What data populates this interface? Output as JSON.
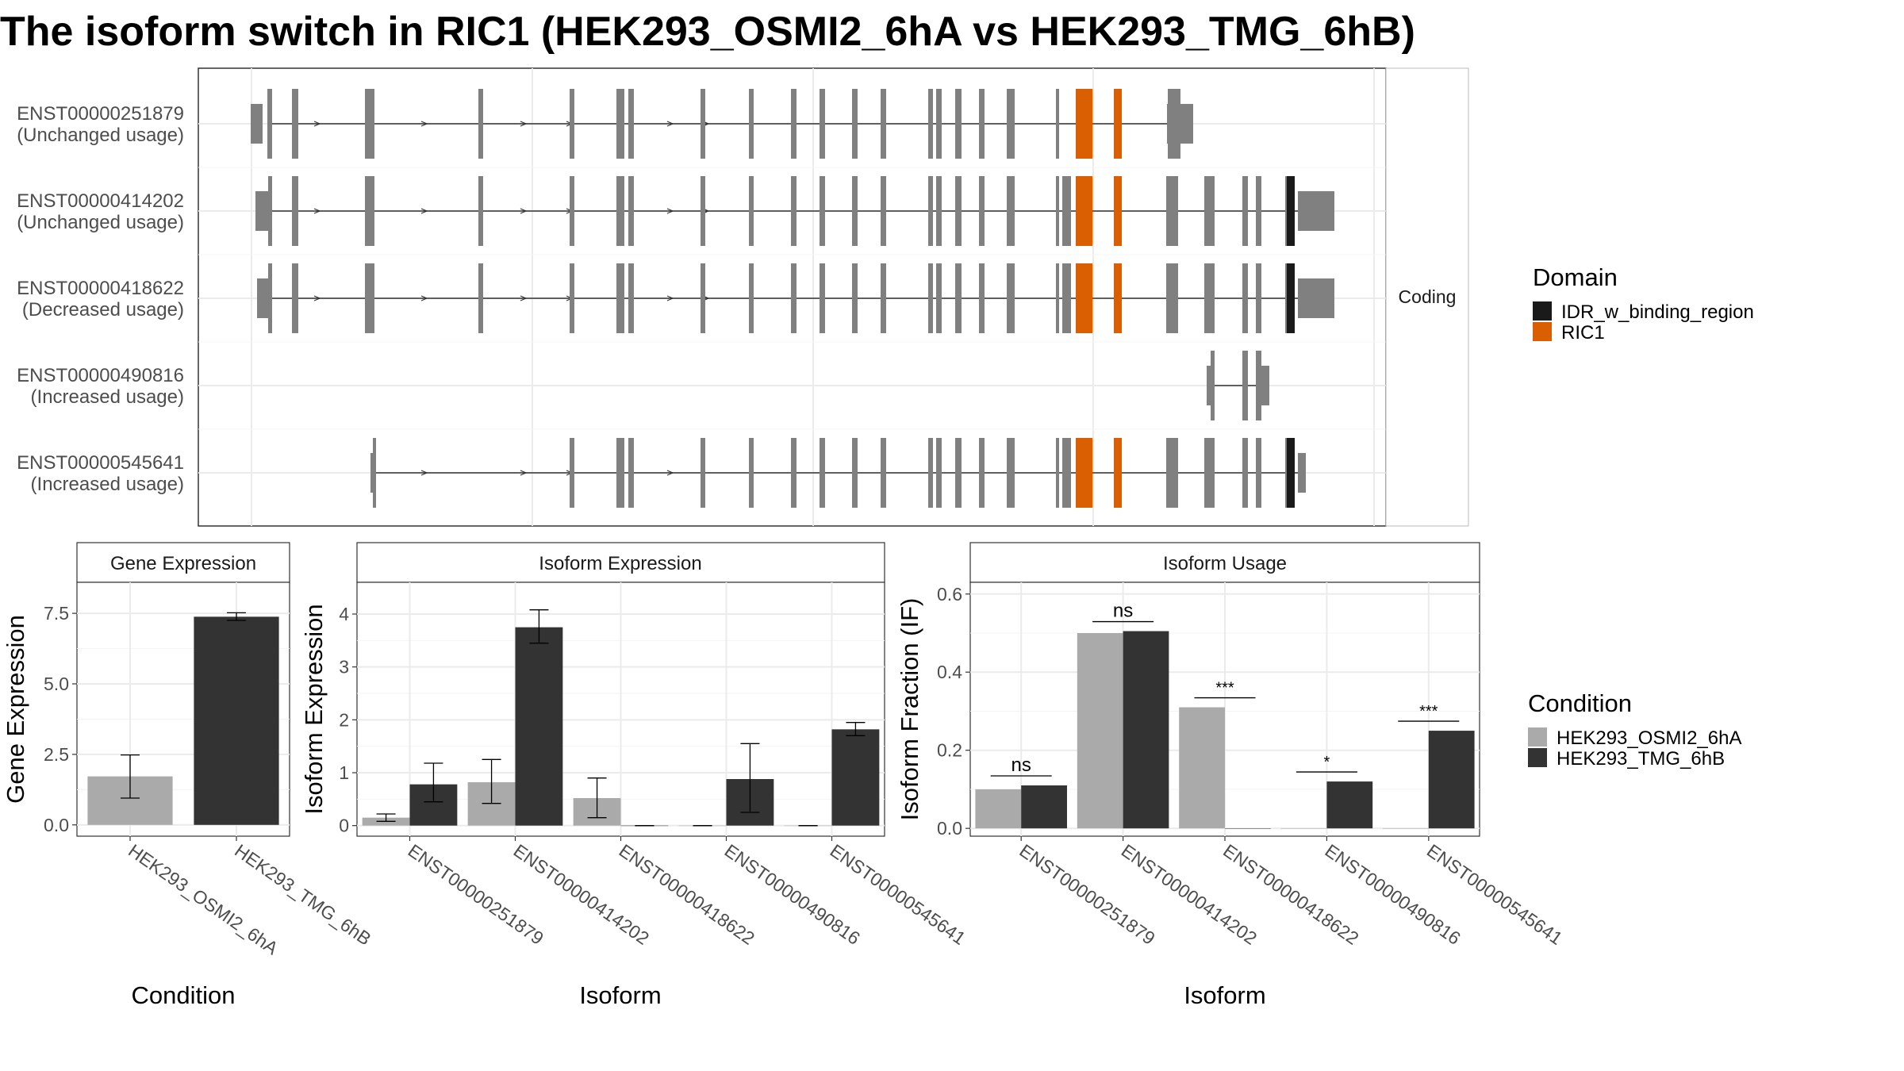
{
  "title": "The isoform switch in RIC1 (HEK293_OSMI2_6hA vs HEK293_TMG_6hB)",
  "colors": {
    "exon": "#808080",
    "idr": "#1a1a1a",
    "ric1": "#d95f02",
    "cond_a": "#aaaaaa",
    "cond_b": "#333333",
    "panel_border": "#333333",
    "grid": "#ebebeb",
    "strip_bg": "#ffffff"
  },
  "structure": {
    "strip_label": "Coding",
    "isoforms": [
      {
        "id": "ENST00000251879",
        "usage": "(Unchanged usage)"
      },
      {
        "id": "ENST00000414202",
        "usage": "(Unchanged usage)"
      },
      {
        "id": "ENST00000418622",
        "usage": "(Decreased usage)"
      },
      {
        "id": "ENST00000490816",
        "usage": "(Increased usage)"
      },
      {
        "id": "ENST00000545641",
        "usage": "(Increased usage)"
      }
    ]
  },
  "legends": {
    "domain": {
      "title": "Domain",
      "items": [
        {
          "label": "IDR_w_binding_region",
          "color_key": "idr"
        },
        {
          "label": "RIC1",
          "color_key": "ric1"
        }
      ]
    },
    "condition": {
      "title": "Condition",
      "items": [
        {
          "label": "HEK293_OSMI2_6hA",
          "color_key": "cond_a"
        },
        {
          "label": "HEK293_TMG_6hB",
          "color_key": "cond_b"
        }
      ]
    }
  },
  "chart_data": [
    {
      "type": "bar",
      "title": "Gene Expression",
      "xlabel": "Condition",
      "ylabel": "Gene Expression",
      "categories": [
        "HEK293_OSMI2_6hA",
        "HEK293_TMG_6hB"
      ],
      "values": [
        1.72,
        7.38
      ],
      "error_low": [
        0.95,
        7.25
      ],
      "error_high": [
        2.48,
        7.52
      ],
      "ylim": [
        -0.4,
        8.6
      ],
      "yticks": [
        "0.0",
        "2.5",
        "5.0",
        "7.5"
      ],
      "grid": true
    },
    {
      "type": "bar",
      "title": "Isoform Expression",
      "xlabel": "Isoform",
      "ylabel": "Isoform Expression",
      "categories": [
        "ENST00000251879",
        "ENST00000414202",
        "ENST00000418622",
        "ENST00000490816",
        "ENST00000545641"
      ],
      "series": [
        {
          "name": "HEK293_OSMI2_6hA",
          "values": [
            0.15,
            0.82,
            0.52,
            0.0,
            0.0
          ],
          "error_low": [
            0.08,
            0.42,
            0.15,
            0.0,
            0.0
          ],
          "error_high": [
            0.22,
            1.25,
            0.9,
            0.0,
            0.0
          ]
        },
        {
          "name": "HEK293_TMG_6hB",
          "values": [
            0.78,
            3.75,
            0.0,
            0.88,
            1.82
          ],
          "error_low": [
            0.45,
            3.45,
            0.0,
            0.25,
            1.7
          ],
          "error_high": [
            1.18,
            4.08,
            0.0,
            1.55,
            1.95
          ]
        }
      ],
      "ylim": [
        -0.2,
        4.6
      ],
      "yticks": [
        "0",
        "1",
        "2",
        "3",
        "4"
      ],
      "grid": true
    },
    {
      "type": "bar",
      "title": "Isoform Usage",
      "xlabel": "Isoform",
      "ylabel": "Isoform Fraction (IF)",
      "categories": [
        "ENST00000251879",
        "ENST00000414202",
        "ENST00000418622",
        "ENST00000490816",
        "ENST00000545641"
      ],
      "series": [
        {
          "name": "HEK293_OSMI2_6hA",
          "values": [
            0.1,
            0.5,
            0.31,
            0.0,
            0.0
          ]
        },
        {
          "name": "HEK293_TMG_6hB",
          "values": [
            0.11,
            0.505,
            0.0,
            0.12,
            0.25
          ]
        }
      ],
      "significance": [
        "ns",
        "ns",
        "***",
        "*",
        "***"
      ],
      "ylim": [
        -0.02,
        0.63
      ],
      "yticks": [
        "0.0",
        "0.2",
        "0.4",
        "0.6"
      ],
      "grid": true
    }
  ]
}
